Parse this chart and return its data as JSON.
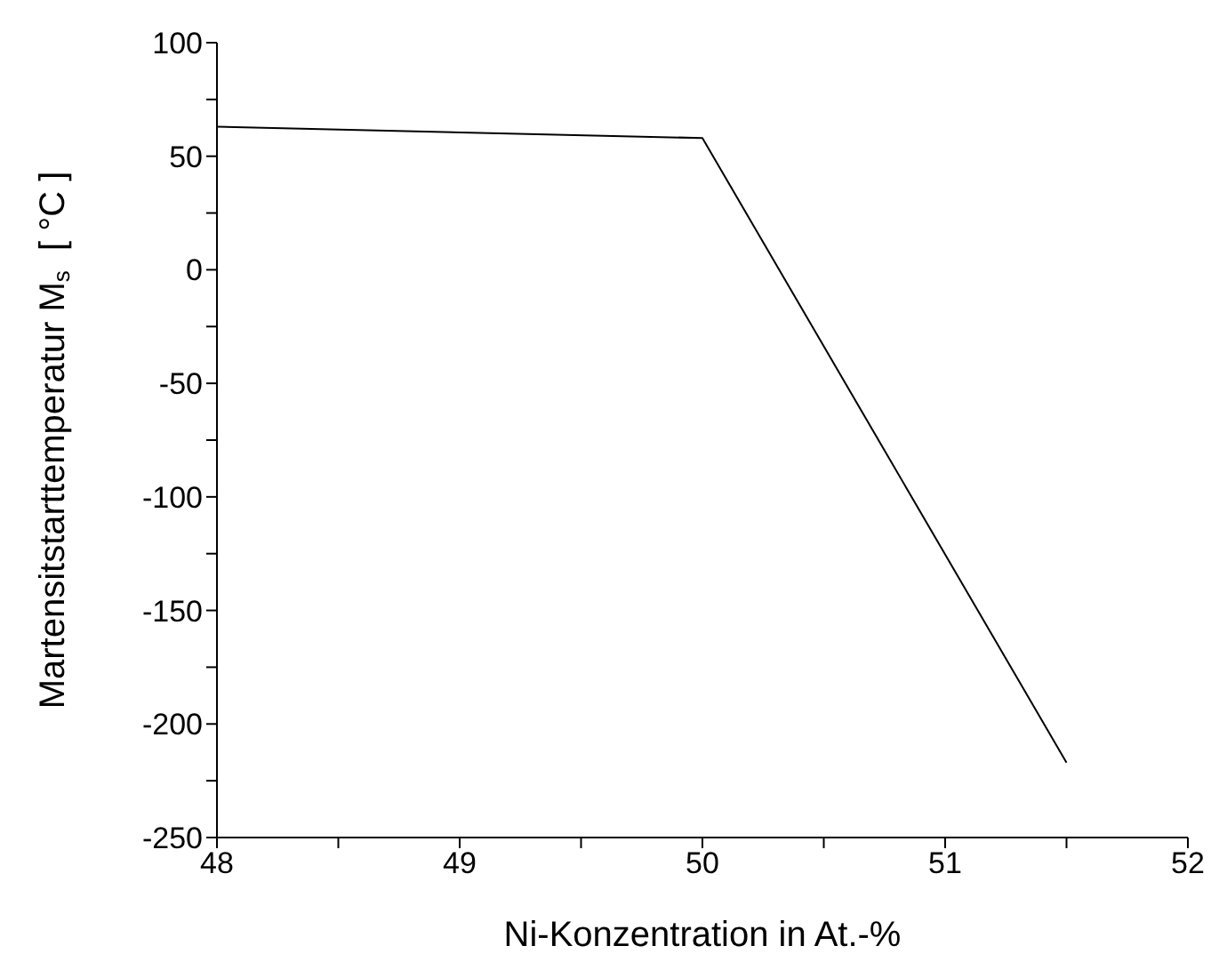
{
  "chart_data": {
    "type": "line",
    "xlabel": "Ni-Konzentration in At.-%",
    "ylabel": "Martensitstarttemperatur M$_{s}$  [ °C ]",
    "x": [
      48,
      50,
      51.5
    ],
    "series": [
      {
        "color": "#000000",
        "values": [
          63,
          58,
          -217
        ]
      }
    ],
    "xlim": [
      48,
      52
    ],
    "xticks": [
      48,
      {
        "value": 48.5,
        "label": null
      },
      49,
      {
        "value": 49.5,
        "label": null
      },
      50,
      {
        "value": 50.5,
        "label": null
      },
      51,
      {
        "value": 51.5,
        "label": null
      },
      52
    ],
    "ylim": [
      -250,
      100
    ],
    "yticks": [
      -250,
      {
        "value": -225,
        "label": null
      },
      -200,
      {
        "value": -175,
        "label": null
      },
      -150,
      {
        "value": -125,
        "label": null
      },
      -100,
      {
        "value": -75,
        "label": null
      },
      -50,
      {
        "value": -25,
        "label": null
      },
      0,
      {
        "value": 25,
        "label": null
      },
      50,
      {
        "value": 75,
        "label": null
      },
      100
    ],
    "grid": false,
    "legend": false,
    "marker": "none",
    "line_style": "solid"
  }
}
